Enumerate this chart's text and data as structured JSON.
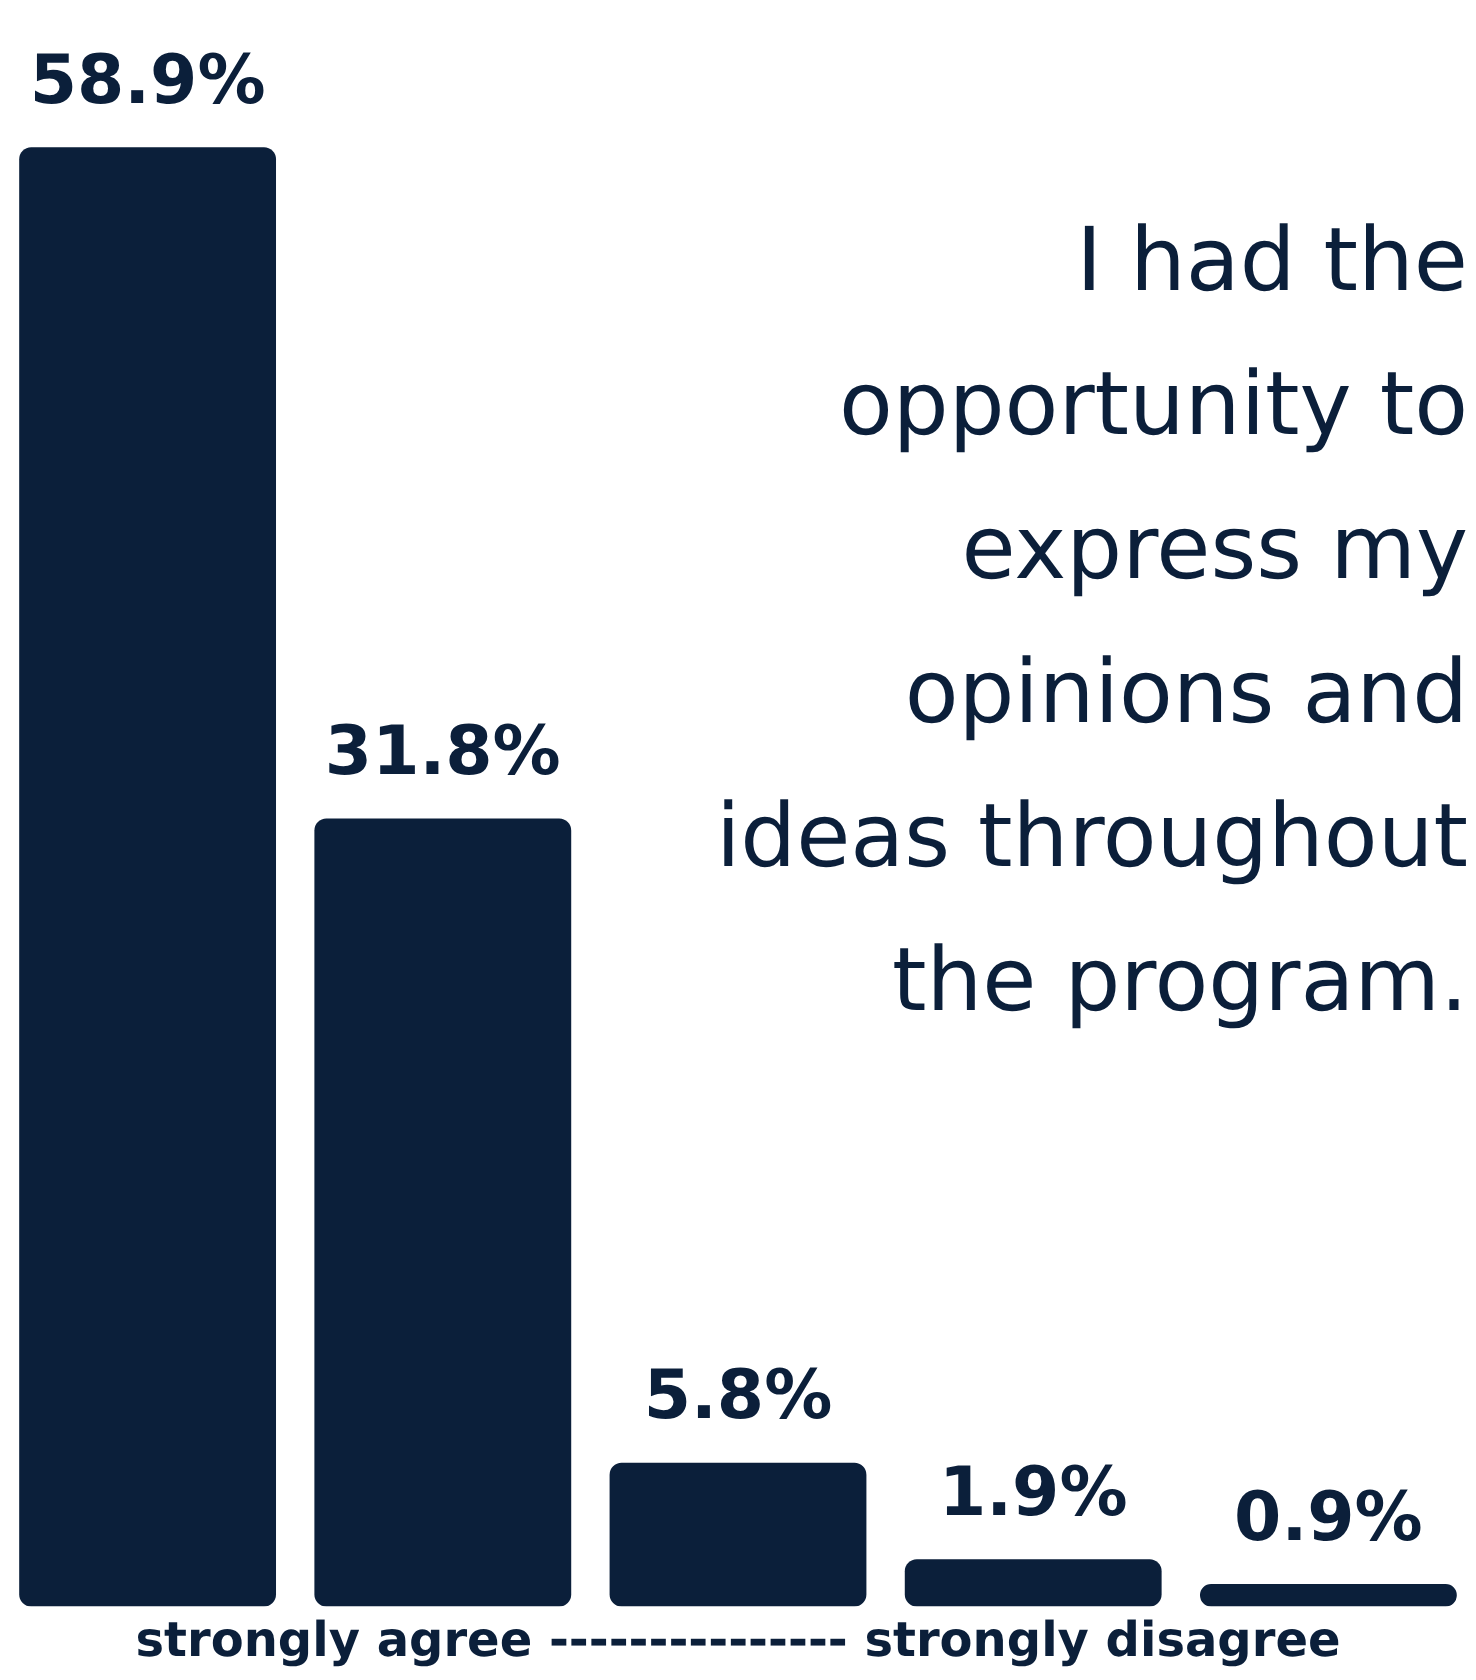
{
  "chart_data": {
    "type": "bar",
    "title": "I had the opportunity to express my opinions and ideas throughout the program.",
    "xlabel": "strongly agree --------------- strongly disagree",
    "categories": [
      null,
      null,
      null,
      null,
      null
    ],
    "values": [
      58.9,
      31.8,
      5.8,
      1.9,
      0.9
    ],
    "color": "#0b1f3a",
    "value_labels": [
      "58.9%",
      "31.8%",
      "5.8%",
      "1.9%",
      "0.9%"
    ],
    "grid": false,
    "legend": false
  }
}
